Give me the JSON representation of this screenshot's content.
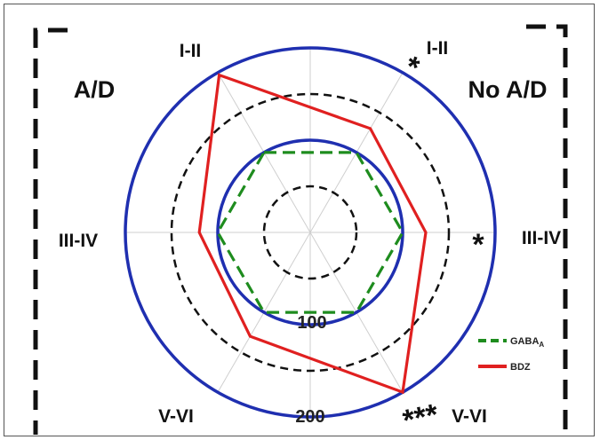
{
  "chart_data": {
    "type": "radar",
    "axes": [
      "I-II",
      "I-II",
      "III-IV",
      "V-VI",
      "V-VI",
      "III-IV"
    ],
    "groups": {
      "left": "A/D",
      "right": "No A/D"
    },
    "rings": [
      {
        "value": 50,
        "style": "dashed",
        "color": "#111111"
      },
      {
        "value": 100,
        "style": "solid",
        "color": "#1f2fb0",
        "label": "100"
      },
      {
        "value": 150,
        "style": "dashed",
        "color": "#111111"
      },
      {
        "value": 200,
        "style": "solid",
        "color": "#1f2fb0",
        "label": "200"
      }
    ],
    "rlim": [
      0,
      200
    ],
    "series": [
      {
        "name": "GABAA",
        "color": "#1e8c1e",
        "dash": "dashed",
        "values": [
          100,
          100,
          100,
          100,
          100,
          100
        ]
      },
      {
        "name": "BDZ",
        "color": "#e02020",
        "values": [
          197,
          130,
          125,
          200,
          130,
          120
        ]
      }
    ],
    "annotations": [
      {
        "text": "*",
        "axis": 0
      },
      {
        "text": "*",
        "axis": 1
      },
      {
        "text": "***",
        "axis": 2
      }
    ],
    "legend": {
      "position": "bottom-right"
    }
  }
}
